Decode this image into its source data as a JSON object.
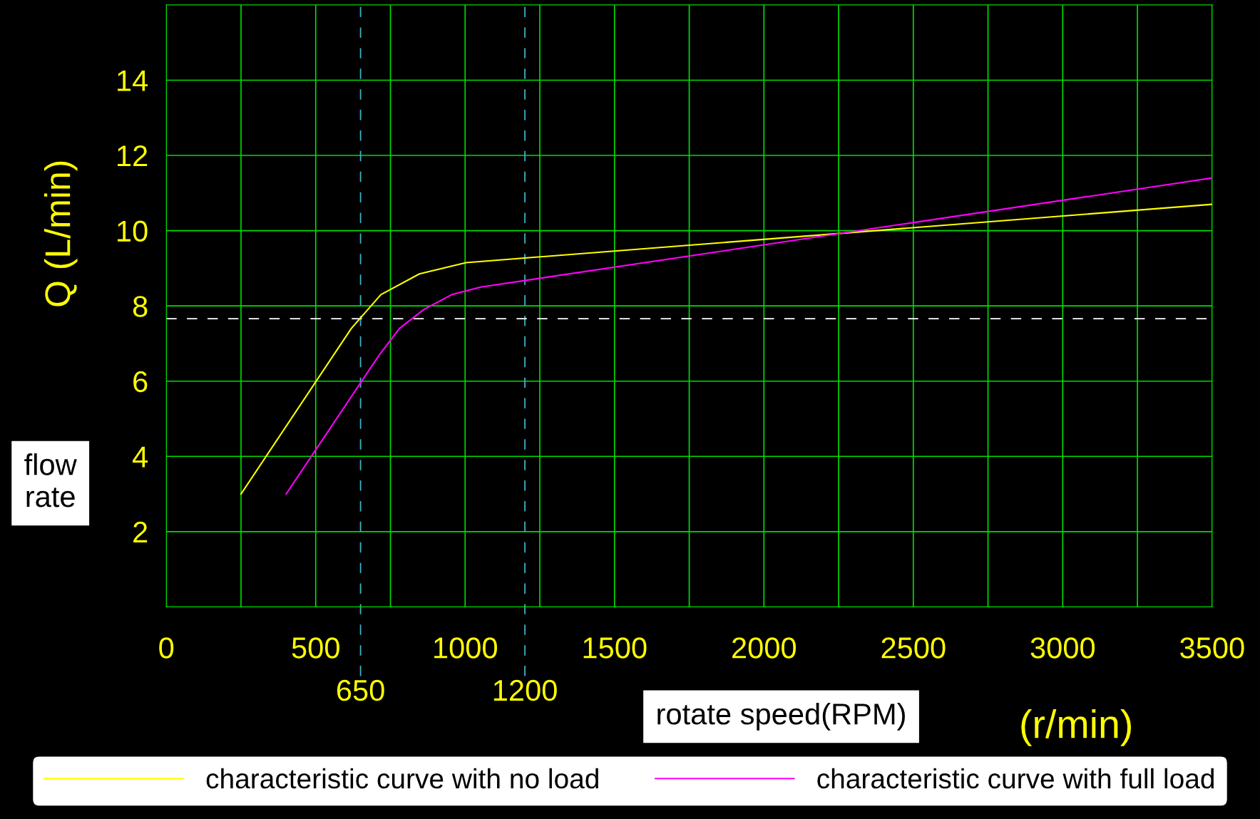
{
  "chart_data": {
    "type": "line",
    "xlabel": "(r/min)",
    "ylabel": "Q (L/min)",
    "annotations": [
      "flow rate",
      "rotate speed(RPM)"
    ],
    "series": [
      {
        "name": "characteristic curve with no load",
        "color": "#ffff00",
        "x": [
          250,
          619,
          718,
          847,
          1003,
          3500
        ],
        "values": [
          3.0,
          7.4,
          8.3,
          8.85,
          9.15,
          10.7
        ]
      },
      {
        "name": "characteristic curve with full load",
        "color": "#ff00ff",
        "x": [
          401,
          713,
          780,
          861,
          955,
          1052,
          3500
        ],
        "values": [
          3.0,
          6.7,
          7.4,
          7.9,
          8.3,
          8.5,
          11.4
        ]
      }
    ],
    "xlim": [
      0,
      3500
    ],
    "ylim": [
      0,
      16
    ],
    "xticks": [
      0,
      {
        "value": 250,
        "label": null
      },
      500,
      {
        "value": 750,
        "label": null
      },
      1000,
      {
        "value": 1250,
        "label": null
      },
      1500,
      {
        "value": 1750,
        "label": null
      },
      2000,
      {
        "value": 2250,
        "label": null
      },
      2500,
      {
        "value": 2750,
        "label": null
      },
      3000,
      {
        "value": 3250,
        "label": null
      },
      3500
    ],
    "yticks": [
      2,
      4,
      6,
      8,
      10,
      12,
      14
    ],
    "ref_lines": [
      {
        "axis": "x",
        "value": 650,
        "label": "650",
        "color": "#3fb0c8",
        "line_style": "dashed"
      },
      {
        "axis": "x",
        "value": 1200,
        "label": "1200",
        "color": "#3fb0c8",
        "line_style": "dashed"
      },
      {
        "axis": "y",
        "value": 7.66,
        "color": "#ffffff",
        "line_style": "dashed"
      }
    ],
    "grid": true,
    "legend": "bottom",
    "marker": "none",
    "line_style": "solid"
  }
}
